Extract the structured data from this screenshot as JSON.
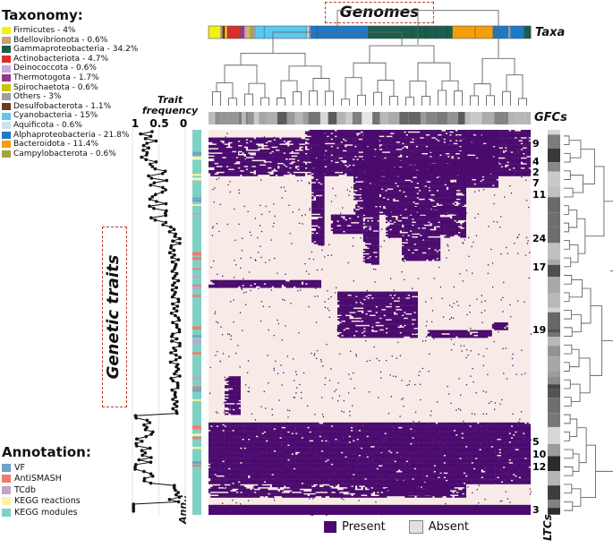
{
  "taxonomy_legend": {
    "title": "Taxonomy:",
    "items": [
      {
        "label": "Firmicutes - 4%",
        "color": "#f2f20d"
      },
      {
        "label": "Bdellovibrionota - 0.6%",
        "color": "#c8a27a"
      },
      {
        "label": "Gammaproteobacteria - 34.2%",
        "color": "#1b5e4b"
      },
      {
        "label": "Actinobacteriota - 4.7%",
        "color": "#d7302b"
      },
      {
        "label": "Deinococcota - 0.6%",
        "color": "#c9a6e0"
      },
      {
        "label": "Thermotogota - 1.7%",
        "color": "#8e3a8e"
      },
      {
        "label": "Spirochaetota - 0.6%",
        "color": "#c8c400"
      },
      {
        "label": "Others - 3%",
        "color": "#9e9e9e"
      },
      {
        "label": "Desulfobacterota - 1.1%",
        "color": "#6b3b1e"
      },
      {
        "label": "Cyanobacteria - 15%",
        "color": "#5bc8f0"
      },
      {
        "label": "Aquificota - 0.6%",
        "color": "#cfe0f0"
      },
      {
        "label": "Alphaproteobacteria - 21.8%",
        "color": "#1f78c8"
      },
      {
        "label": "Bacteroidota - 11.4%",
        "color": "#f59e0b"
      },
      {
        "label": "Campylobacterota - 0.6%",
        "color": "#a4a040"
      }
    ]
  },
  "annotation_legend": {
    "title": "Annotation:",
    "items": [
      {
        "label": "VF",
        "color": "#6fa3c7"
      },
      {
        "label": "AntiSMASH",
        "color": "#f07a6e"
      },
      {
        "label": "TCdb",
        "color": "#c3a3c9"
      },
      {
        "label": "KEGG reactions",
        "color": "#fff2a8"
      },
      {
        "label": "KEGG modules",
        "color": "#7fd1c3"
      }
    ]
  },
  "labels": {
    "genomes": "Genomes",
    "genetic_traits": "Genetic traits",
    "taxa": "Taxa",
    "gfcs": "GFCs",
    "ltcs": "LTCs",
    "ann": "Ann.:",
    "trait_frequency": "Trait frequency"
  },
  "heatmap_legend": {
    "present": {
      "label": "Present",
      "color": "#4a0a6e"
    },
    "absent": {
      "label": "Absent",
      "color": "#f8ebe7"
    }
  },
  "chart_data": {
    "type": "heatmap",
    "title": "Genomes",
    "xlabel": "Genomes",
    "ylabel": "Genetic traits",
    "trait_frequency_axis": {
      "label": "Trait frequency",
      "range": [
        1,
        0
      ],
      "ticks": [
        "1",
        "0.5",
        "0"
      ]
    },
    "ltc_cluster_labels": [
      "9",
      "4",
      "2",
      "7",
      "11",
      "24",
      "17",
      "19",
      "5",
      "10",
      "12",
      "3"
    ],
    "taxa_track_order": [
      "Firmicutes",
      "Actinobacteriota",
      "Thermotogota",
      "Cyanobacteria",
      "Alphaproteobacteria",
      "Gammaproteobacteria",
      "Bacteroidota",
      "Alphaproteobacteria"
    ],
    "cell_values": [
      "Present",
      "Absent"
    ]
  }
}
